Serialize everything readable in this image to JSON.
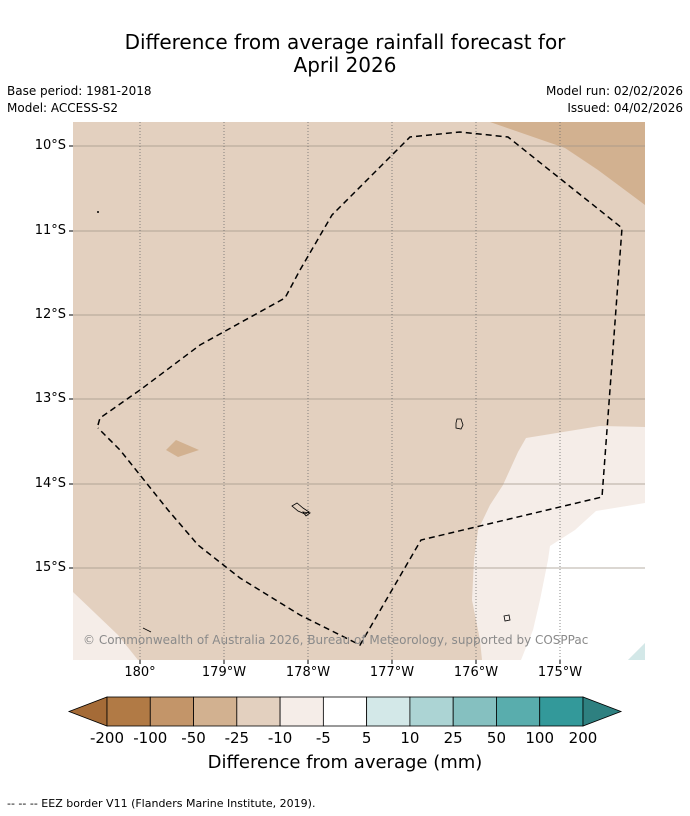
{
  "title": {
    "line1": "Difference from average rainfall forecast for",
    "line2": "April 2026"
  },
  "meta": {
    "base_period": "Base period: 1981-2018",
    "model": "Model: ACCESS-S2",
    "model_run": "Model run: 02/02/2026",
    "issued": "Issued: 04/02/2026"
  },
  "map": {
    "lat_labels": [
      "10°S",
      "11°S",
      "12°S",
      "13°S",
      "14°S",
      "15°S"
    ],
    "lon_labels": [
      "180°",
      "179°W",
      "178°W",
      "177°W",
      "176°W",
      "175°W"
    ],
    "copyright": "© Commonwealth of Australia 2026, Bureau of Meteorology, supported by COSPPac",
    "dominant_category": "-10 to -25 mm",
    "colors": {
      "dry_25": "#e3d0bf",
      "dry_50": "#d2b190",
      "dry_10": "#f5ede8",
      "neutral": "#ffffff",
      "wet_10": "#d3e8e8"
    }
  },
  "colorbar": {
    "ticks": [
      "-200",
      "-100",
      "-50",
      "-25",
      "-10",
      "-5",
      "5",
      "10",
      "25",
      "50",
      "100",
      "200"
    ],
    "colors": [
      "#a56b37",
      "#b17a45",
      "#c39569",
      "#d2b190",
      "#e3d0bf",
      "#f5ede8",
      "#ffffff",
      "#d3e8e8",
      "#acd4d4",
      "#85c0c0",
      "#59adad",
      "#33999a",
      "#2e8080"
    ],
    "label": "Difference from average (mm)"
  },
  "footer": "--  --  -- EEZ border V11 (Flanders Marine Institute, 2019)."
}
